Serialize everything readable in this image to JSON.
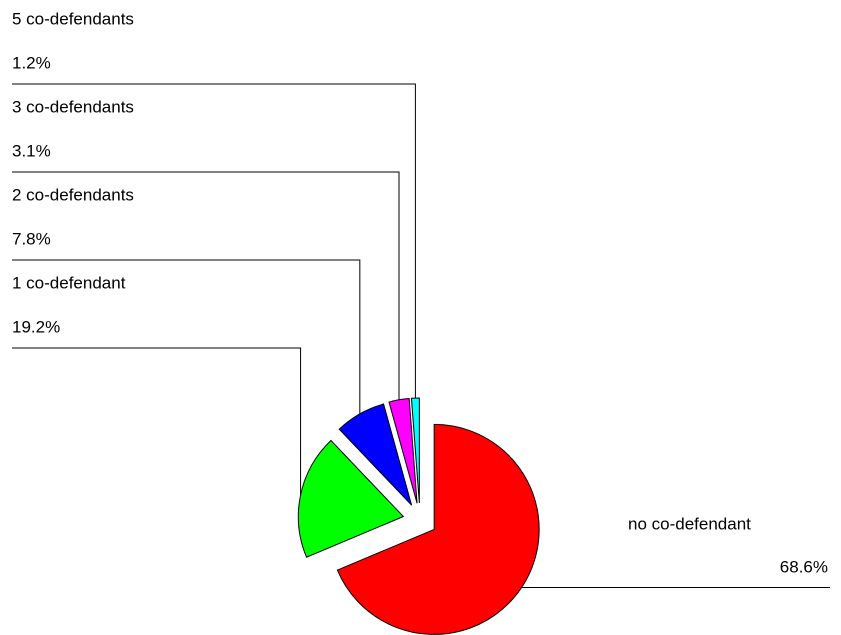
{
  "chart_data": {
    "type": "pie",
    "categories": [
      "no co-defendant",
      "1 co-defendant",
      "2 co-defendants",
      "3 co-defendants",
      "5 co-defendants"
    ],
    "values": [
      68.6,
      19.2,
      7.8,
      3.1,
      1.2
    ],
    "value_labels": [
      "68.6%",
      "19.2%",
      "7.8%",
      "3.1%",
      "1.2%"
    ],
    "colors": [
      "#ff0000",
      "#00ff00",
      "#0000ff",
      "#ff00ff",
      "#00ffff"
    ]
  }
}
